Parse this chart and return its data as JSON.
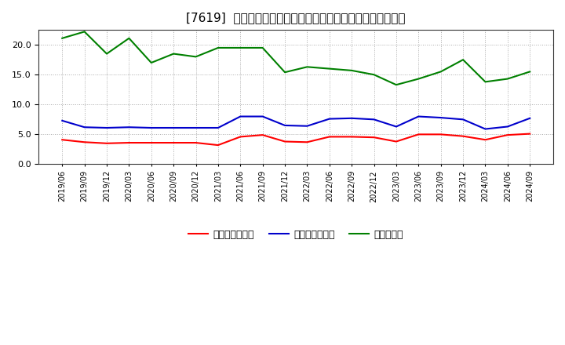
{
  "title": "[7619]  売上債権回転率、買入債務回転率、在庫回転率の推移",
  "x_labels": [
    "2019/06",
    "2019/09",
    "2019/12",
    "2020/03",
    "2020/06",
    "2020/09",
    "2020/12",
    "2021/03",
    "2021/06",
    "2021/09",
    "2021/12",
    "2022/03",
    "2022/06",
    "2022/09",
    "2022/12",
    "2023/03",
    "2023/06",
    "2023/09",
    "2023/12",
    "2024/03",
    "2024/06",
    "2024/09"
  ],
  "receivables_turnover": [
    4.1,
    3.7,
    3.5,
    3.6,
    3.6,
    3.6,
    3.6,
    3.2,
    4.6,
    4.9,
    3.8,
    3.7,
    4.6,
    4.6,
    4.5,
    3.8,
    5.0,
    5.0,
    4.7,
    4.1,
    4.9,
    5.1
  ],
  "payables_turnover": [
    7.3,
    6.2,
    6.1,
    6.2,
    6.1,
    6.1,
    6.1,
    6.1,
    8.0,
    8.0,
    6.5,
    6.4,
    7.6,
    7.7,
    7.5,
    6.3,
    8.0,
    7.8,
    7.5,
    5.9,
    6.3,
    7.7
  ],
  "inventory_turnover": [
    21.1,
    22.2,
    18.5,
    21.1,
    17.0,
    18.5,
    18.0,
    19.5,
    19.5,
    19.5,
    15.4,
    16.3,
    16.0,
    15.7,
    15.0,
    13.3,
    14.3,
    15.5,
    17.5,
    13.8,
    14.3,
    15.5
  ],
  "receivables_color": "#ff0000",
  "payables_color": "#0000cc",
  "inventory_color": "#008000",
  "legend_labels": [
    "売上債権回転率",
    "買入債務回転率",
    "在庫回転率"
  ],
  "ylim": [
    0.0,
    22.5
  ],
  "yticks": [
    0.0,
    5.0,
    10.0,
    15.0,
    20.0
  ],
  "bg_color": "#ffffff",
  "grid_color": "#aaaaaa",
  "figsize": [
    7.2,
    4.4
  ],
  "dpi": 100
}
